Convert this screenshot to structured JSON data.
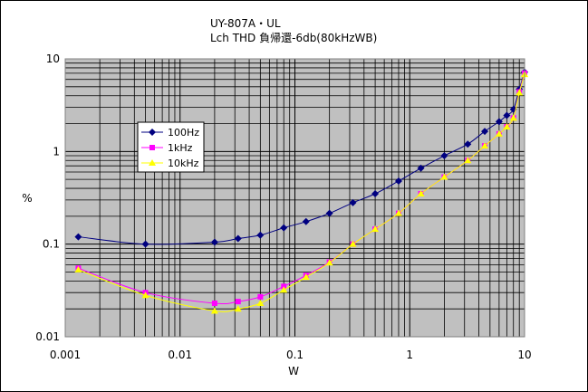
{
  "chart_data": {
    "type": "line",
    "title": "UY-807A・UL",
    "subtitle": "Lch THD 負帰還-6db(80kHzWB)",
    "xlabel": "W",
    "ylabel": "%",
    "xscale": "log",
    "yscale": "log",
    "xlim": [
      0.001,
      10
    ],
    "ylim": [
      0.01,
      10
    ],
    "x_ticks": [
      "0.001",
      "0.01",
      "0.1",
      "1",
      "10"
    ],
    "y_ticks": [
      "10",
      "1",
      "0.1",
      "0.01"
    ],
    "grid": true,
    "legend_position": "left",
    "plot_background": "#c0c0c0",
    "series": [
      {
        "name": "100Hz",
        "color": "#000080",
        "marker": "diamond",
        "points": [
          [
            0.0013,
            0.12
          ],
          [
            0.005,
            0.1
          ],
          [
            0.02,
            0.105
          ],
          [
            0.032,
            0.115
          ],
          [
            0.05,
            0.125
          ],
          [
            0.08,
            0.15
          ],
          [
            0.125,
            0.175
          ],
          [
            0.2,
            0.215
          ],
          [
            0.32,
            0.28
          ],
          [
            0.5,
            0.35
          ],
          [
            0.8,
            0.48
          ],
          [
            1.25,
            0.66
          ],
          [
            2.0,
            0.9
          ],
          [
            3.2,
            1.2
          ],
          [
            4.5,
            1.65
          ],
          [
            6.0,
            2.1
          ],
          [
            7.0,
            2.45
          ],
          [
            8.0,
            2.85
          ],
          [
            9.0,
            4.7
          ],
          [
            10.0,
            7.2
          ]
        ]
      },
      {
        "name": "1kHz",
        "color": "#ff00ff",
        "marker": "square",
        "points": [
          [
            0.0013,
            0.055
          ],
          [
            0.005,
            0.03
          ],
          [
            0.02,
            0.023
          ],
          [
            0.032,
            0.024
          ],
          [
            0.05,
            0.027
          ],
          [
            0.08,
            0.035
          ],
          [
            0.125,
            0.046
          ],
          [
            0.2,
            0.064
          ],
          [
            0.32,
            0.1
          ],
          [
            0.5,
            0.145
          ],
          [
            0.8,
            0.215
          ],
          [
            1.25,
            0.35
          ],
          [
            2.0,
            0.53
          ],
          [
            3.2,
            0.8
          ],
          [
            4.5,
            1.15
          ],
          [
            6.0,
            1.55
          ],
          [
            7.0,
            1.85
          ],
          [
            8.0,
            2.3
          ],
          [
            9.0,
            4.4
          ],
          [
            10.0,
            7.0
          ]
        ]
      },
      {
        "name": "10kHz",
        "color": "#ffff00",
        "marker": "triangle",
        "points": [
          [
            0.0013,
            0.053
          ],
          [
            0.005,
            0.028
          ],
          [
            0.02,
            0.019
          ],
          [
            0.032,
            0.02
          ],
          [
            0.05,
            0.023
          ],
          [
            0.08,
            0.032
          ],
          [
            0.125,
            0.044
          ],
          [
            0.2,
            0.063
          ],
          [
            0.32,
            0.1
          ],
          [
            0.5,
            0.145
          ],
          [
            0.8,
            0.215
          ],
          [
            1.25,
            0.35
          ],
          [
            2.0,
            0.53
          ],
          [
            3.2,
            0.8
          ],
          [
            4.5,
            1.15
          ],
          [
            6.0,
            1.55
          ],
          [
            7.0,
            1.85
          ],
          [
            8.0,
            2.3
          ],
          [
            9.0,
            4.3
          ],
          [
            10.0,
            6.8
          ]
        ]
      }
    ]
  }
}
